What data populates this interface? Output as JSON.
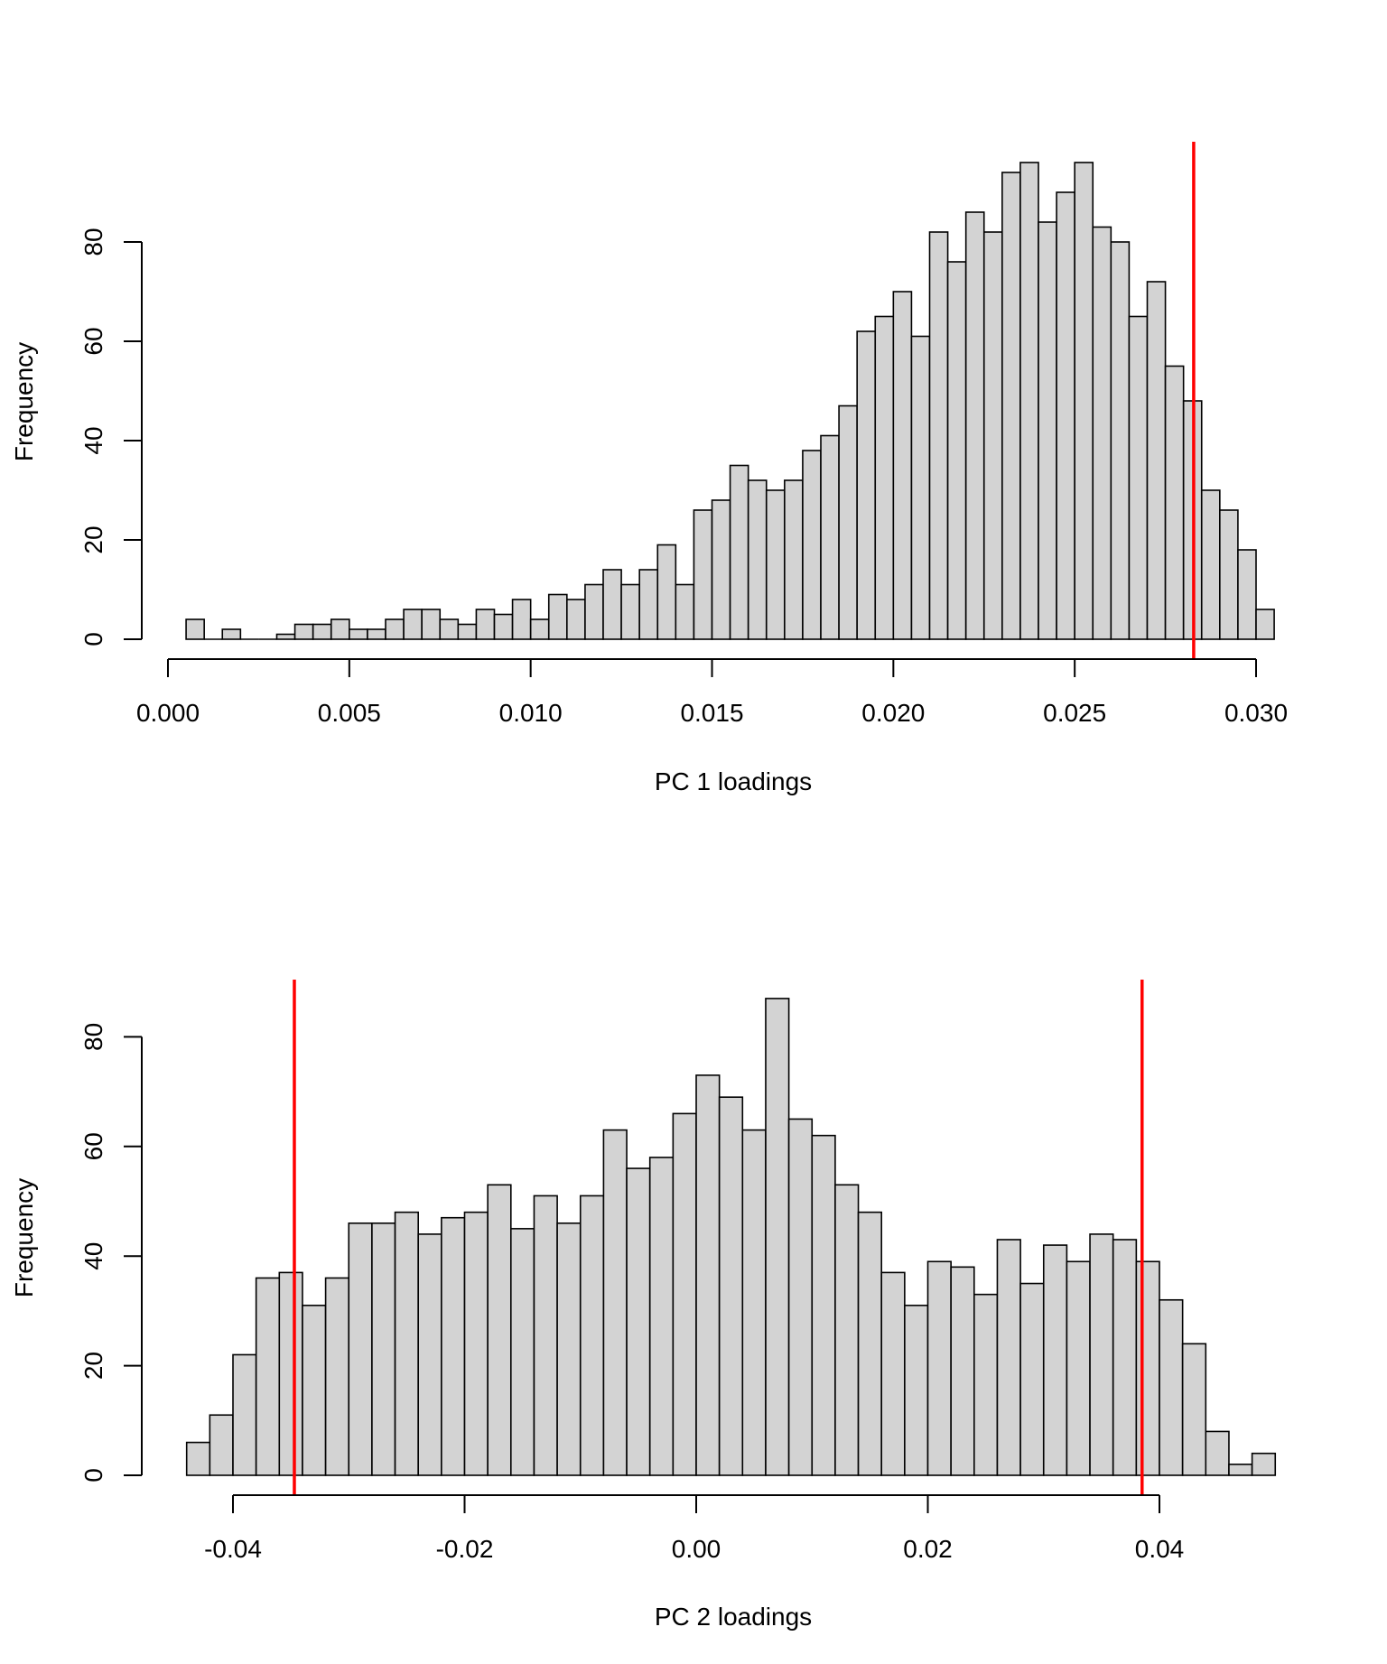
{
  "chart_data": [
    {
      "type": "bar",
      "subtype": "histogram",
      "xlabel": "PC 1 loadings",
      "ylabel": "Frequency",
      "xlim": [
        0.0,
        0.0305
      ],
      "ylim": [
        0,
        100
      ],
      "xticks": [
        0.0,
        0.005,
        0.01,
        0.015,
        0.02,
        0.025,
        0.03
      ],
      "xtick_labels": [
        "0.000",
        "0.005",
        "0.010",
        "0.015",
        "0.020",
        "0.025",
        "0.030"
      ],
      "yticks": [
        0,
        20,
        40,
        60,
        80
      ],
      "ytick_labels": [
        "0",
        "20",
        "40",
        "60",
        "80"
      ],
      "bin_start": 0.0005,
      "bin_width": 0.0005,
      "counts": [
        4,
        0,
        2,
        0,
        0,
        1,
        3,
        3,
        4,
        2,
        2,
        4,
        6,
        6,
        4,
        3,
        6,
        5,
        8,
        4,
        9,
        8,
        11,
        14,
        11,
        14,
        19,
        11,
        26,
        28,
        35,
        32,
        30,
        32,
        38,
        41,
        47,
        62,
        65,
        70,
        61,
        82,
        76,
        86,
        82,
        94,
        96,
        84,
        90,
        96,
        83,
        80,
        65,
        72,
        55,
        48,
        30,
        26,
        18,
        6
      ],
      "vlines": [
        0.02828
      ],
      "vline_color": "#ff0000",
      "bar_color": "#d3d3d3",
      "grid": false
    },
    {
      "type": "bar",
      "subtype": "histogram",
      "xlabel": "PC 2 loadings",
      "ylabel": "Frequency",
      "xlim": [
        -0.044,
        0.05
      ],
      "ylim": [
        0,
        90
      ],
      "xticks": [
        -0.04,
        -0.02,
        0.0,
        0.02,
        0.04
      ],
      "xtick_labels": [
        "-0.04",
        "-0.02",
        "0.00",
        "0.02",
        "0.04"
      ],
      "yticks": [
        0,
        20,
        40,
        60,
        80
      ],
      "ytick_labels": [
        "0",
        "20",
        "40",
        "60",
        "80"
      ],
      "bin_start": -0.044,
      "bin_width": 0.002,
      "counts": [
        6,
        11,
        22,
        36,
        37,
        31,
        36,
        46,
        46,
        48,
        44,
        47,
        48,
        53,
        45,
        51,
        46,
        51,
        63,
        56,
        58,
        66,
        73,
        69,
        63,
        87,
        65,
        62,
        53,
        48,
        37,
        31,
        39,
        38,
        33,
        43,
        35,
        42,
        39,
        44,
        43,
        39,
        32,
        24,
        8,
        2,
        4
      ],
      "vlines": [
        -0.0347,
        0.0385
      ],
      "vline_color": "#ff0000",
      "bar_color": "#d3d3d3",
      "grid": false
    }
  ]
}
